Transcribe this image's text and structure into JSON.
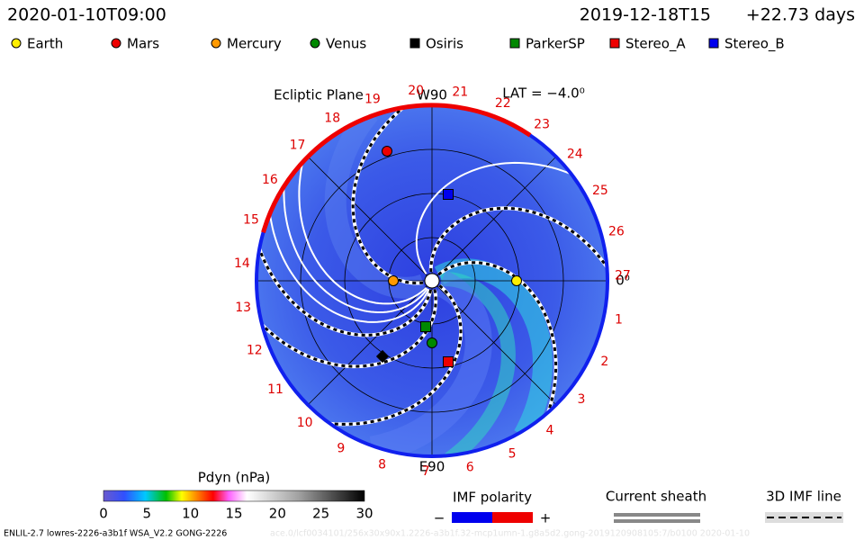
{
  "header": {
    "date": "2020-01-10T09:00",
    "ref_date": "2019-12-18T15",
    "offset": "+22.73 days"
  },
  "legend": [
    {
      "label": "Earth",
      "color": "#ffee00",
      "shape": "circle"
    },
    {
      "label": "Mars",
      "color": "#ee0000",
      "shape": "circle"
    },
    {
      "label": "Mercury",
      "color": "#ff9900",
      "shape": "circle"
    },
    {
      "label": "Venus",
      "color": "#008800",
      "shape": "circle"
    },
    {
      "label": "Osiris",
      "color": "#000000",
      "shape": "square"
    },
    {
      "label": "ParkerSP",
      "color": "#008800",
      "shape": "square"
    },
    {
      "label": "Stereo_A",
      "color": "#ee0000",
      "shape": "square"
    },
    {
      "label": "Stereo_B",
      "color": "#0000ee",
      "shape": "square"
    }
  ],
  "plot": {
    "title": "Ecliptic Plane",
    "top": "W90",
    "lat": "LAT = −4.0⁰",
    "bottom": "E90",
    "right": "0⁰",
    "carrington": [
      "1",
      "2",
      "3",
      "4",
      "5",
      "6",
      "7",
      "8",
      "9",
      "10",
      "11",
      "12",
      "13",
      "14",
      "15",
      "16",
      "17",
      "18",
      "19",
      "20",
      "21",
      "22",
      "23",
      "24",
      "25",
      "26",
      "27"
    ]
  },
  "colorbar": {
    "title": "Pdyn (nPa)",
    "ticks": [
      0,
      5,
      10,
      15,
      20,
      25,
      30
    ]
  },
  "polarity": {
    "title": "IMF polarity",
    "minus": "−",
    "plus": "+"
  },
  "sheath": {
    "title": "Current sheath"
  },
  "imf_line": {
    "title": "3D IMF line"
  },
  "footer": {
    "main": "ENLIL-2.7 lowres-2226-a3b1f WSA_V2.2 GONG-2226",
    "faint": "ace.0/lcf0034101/256x30x90x1.2226-a3b1f.32-mcp1umn-1.g8a5d2.gong-2019120908105:7/b0100    2020-01-10"
  }
}
